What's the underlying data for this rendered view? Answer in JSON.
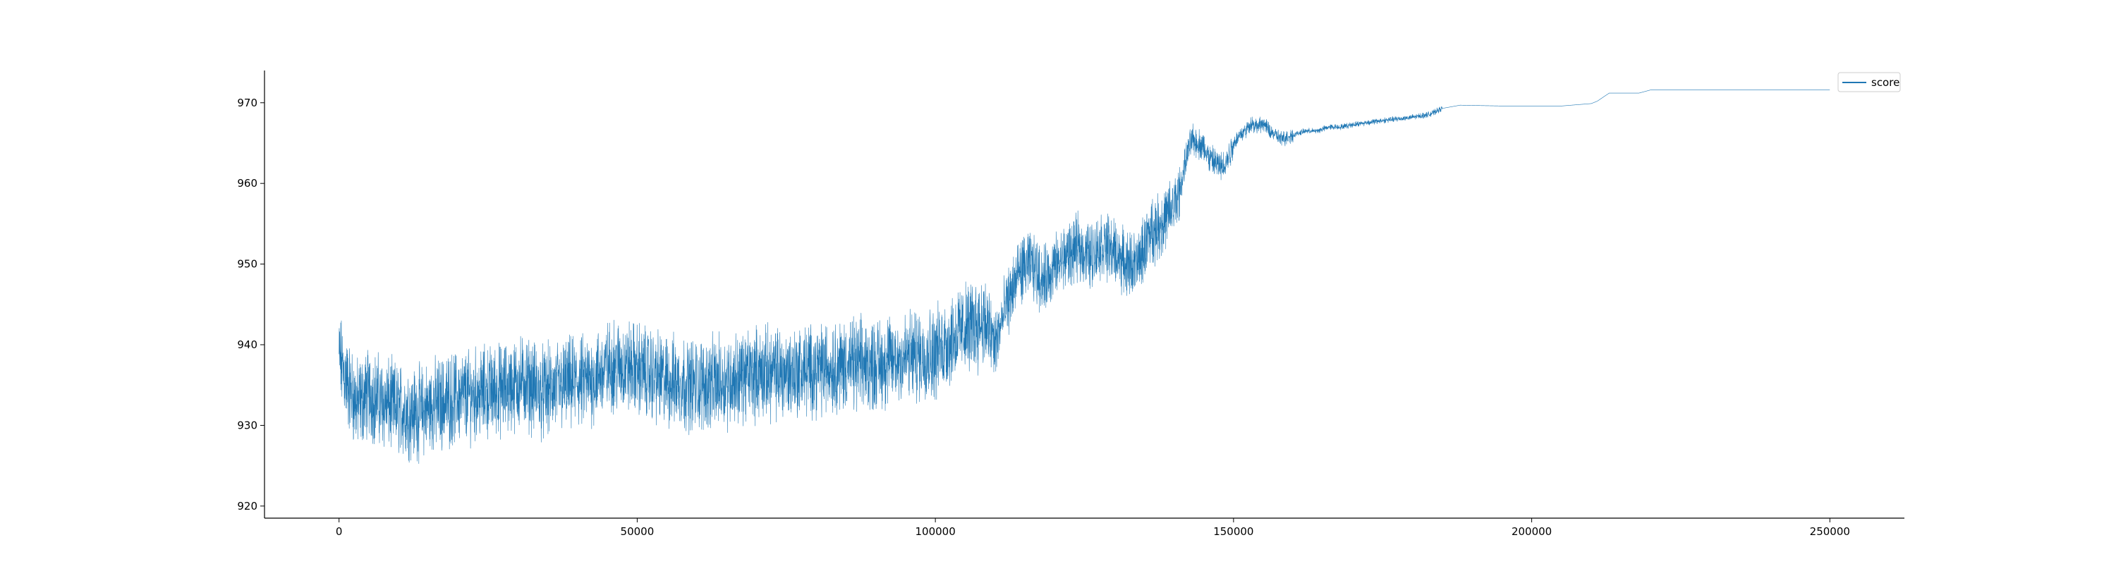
{
  "chart_data": {
    "type": "line",
    "title": "",
    "xlabel": "",
    "ylabel": "",
    "xlim": [
      -12500,
      262500
    ],
    "ylim": [
      918.5,
      974
    ],
    "x_ticks": [
      0,
      50000,
      100000,
      150000,
      200000,
      250000
    ],
    "x_tick_labels": [
      "0",
      "50000",
      "100000",
      "150000",
      "200000",
      "250000"
    ],
    "y_ticks": [
      920,
      930,
      940,
      950,
      960,
      970
    ],
    "y_tick_labels": [
      "920",
      "930",
      "940",
      "950",
      "960",
      "970"
    ],
    "grid": false,
    "legend": {
      "position": "top-right",
      "entries": [
        "score"
      ]
    },
    "series": [
      {
        "name": "score",
        "color": "#1f77b4",
        "x": [
          0,
          1500,
          3000,
          5000,
          7000,
          10000,
          13000,
          16000,
          20000,
          24000,
          28000,
          31000,
          34000,
          38000,
          42000,
          46000,
          50000,
          55000,
          60000,
          65000,
          70000,
          75000,
          80000,
          85000,
          90000,
          95000,
          100000,
          104000,
          108000,
          110000,
          112000,
          114000,
          116000,
          118000,
          120000,
          122000,
          124000,
          126000,
          128000,
          130000,
          132000,
          134000,
          136000,
          138000,
          140000,
          141000,
          142000,
          143000,
          144000,
          145000,
          146000,
          147000,
          148000,
          149000,
          150000,
          151000,
          152000,
          153000,
          154000,
          155000,
          156000,
          157000,
          158000,
          160000,
          162000,
          164000,
          166000,
          168000,
          170000,
          175000,
          180000,
          183000,
          185000,
          188000,
          195000,
          205000,
          210000,
          211000,
          213000,
          218000,
          220000,
          230000,
          240000,
          250000
        ],
        "values": [
          938.5,
          935.0,
          932.5,
          934.0,
          933.0,
          932.0,
          931.5,
          932.5,
          933.5,
          934.0,
          934.5,
          935.5,
          934.0,
          935.0,
          935.5,
          937.5,
          937.0,
          935.5,
          935.0,
          935.5,
          936.5,
          936.5,
          937.0,
          937.5,
          937.5,
          938.5,
          939.0,
          941.5,
          943.0,
          940.0,
          945.0,
          949.0,
          950.0,
          948.0,
          949.5,
          951.0,
          952.0,
          951.0,
          952.5,
          951.5,
          950.0,
          950.0,
          954.0,
          955.0,
          957.0,
          959.0,
          963.0,
          965.5,
          965.0,
          964.5,
          963.0,
          962.5,
          962.0,
          963.0,
          965.0,
          966.0,
          966.5,
          967.5,
          967.0,
          967.5,
          966.5,
          966.0,
          965.5,
          966.0,
          966.5,
          966.5,
          967.0,
          967.0,
          967.3,
          967.8,
          968.2,
          968.6,
          969.3,
          969.7,
          969.6,
          969.6,
          969.9,
          970.2,
          971.2,
          971.2,
          971.6,
          971.6,
          971.6,
          971.6
        ]
      }
    ]
  }
}
